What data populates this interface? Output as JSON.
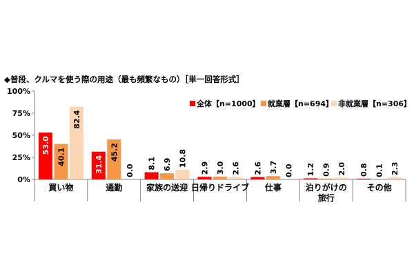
{
  "chart_data": {
    "type": "bar",
    "title": "◆普段、クルマを使う際の用途（最も頻繁なもの）［単一回答形式］",
    "xlabel": "",
    "ylabel": "",
    "ylim": [
      0,
      100
    ],
    "yticks": [
      "0%",
      "25%",
      "50%",
      "75%",
      "100%"
    ],
    "ytick_values": [
      0,
      25,
      50,
      75,
      100
    ],
    "grid": false,
    "legend_position": "top-right",
    "categories": [
      [
        "買い物"
      ],
      [
        "通勤"
      ],
      [
        "家族の送迎"
      ],
      [
        "日帰りドライブ"
      ],
      [
        "仕事"
      ],
      [
        "泊りがけの",
        "旅行"
      ],
      [
        "その他"
      ]
    ],
    "series": [
      {
        "name": "全体【n=1000】",
        "color": "#ff0000",
        "values": [
          53.0,
          31.4,
          8.1,
          2.9,
          2.6,
          1.2,
          0.8
        ],
        "labels": [
          "53.0",
          "31.4",
          "8.1",
          "2.9",
          "2.6",
          "1.2",
          "0.8"
        ]
      },
      {
        "name": "就業層【n=694】",
        "color": "#f79646",
        "values": [
          40.1,
          45.2,
          6.9,
          3.0,
          3.7,
          0.9,
          0.1
        ],
        "labels": [
          "40.1",
          "45.2",
          "6.9",
          "3.0",
          "3.7",
          "0.9",
          "0.1"
        ]
      },
      {
        "name": "非就業層【n=306】",
        "color": "#fcd5b4",
        "values": [
          82.4,
          0.0,
          10.8,
          2.6,
          0.0,
          2.0,
          2.3
        ],
        "labels": [
          "82.4",
          "0.0",
          "10.8",
          "2.6",
          "0.0",
          "2.0",
          "2.3"
        ]
      }
    ]
  }
}
